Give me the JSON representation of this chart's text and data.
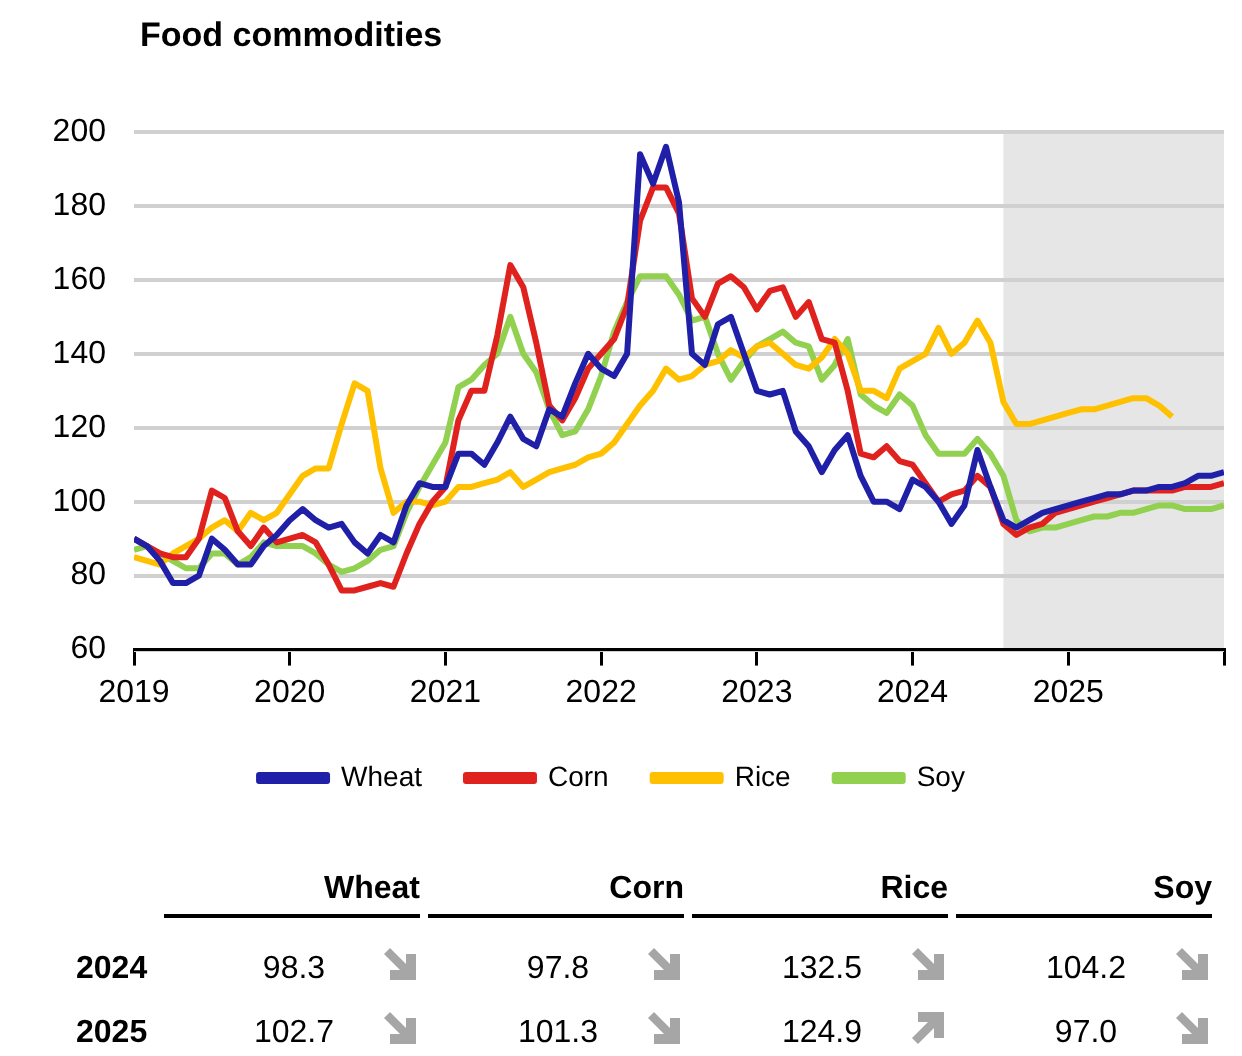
{
  "chart_data": {
    "type": "line",
    "title": "Food commodities",
    "x": [
      "2019-01",
      "2019-02",
      "2019-03",
      "2019-04",
      "2019-05",
      "2019-06",
      "2019-07",
      "2019-08",
      "2019-09",
      "2019-10",
      "2019-11",
      "2019-12",
      "2020-01",
      "2020-02",
      "2020-03",
      "2020-04",
      "2020-05",
      "2020-06",
      "2020-07",
      "2020-08",
      "2020-09",
      "2020-10",
      "2020-11",
      "2020-12",
      "2021-01",
      "2021-02",
      "2021-03",
      "2021-04",
      "2021-05",
      "2021-06",
      "2021-07",
      "2021-08",
      "2021-09",
      "2021-10",
      "2021-11",
      "2021-12",
      "2022-01",
      "2022-02",
      "2022-03",
      "2022-04",
      "2022-05",
      "2022-06",
      "2022-07",
      "2022-08",
      "2022-09",
      "2022-10",
      "2022-11",
      "2022-12",
      "2023-01",
      "2023-02",
      "2023-03",
      "2023-04",
      "2023-05",
      "2023-06",
      "2023-07",
      "2023-08",
      "2023-09",
      "2023-10",
      "2023-11",
      "2023-12",
      "2024-01",
      "2024-02",
      "2024-03",
      "2024-04",
      "2024-05",
      "2024-06",
      "2024-07",
      "2024-08",
      "2024-09",
      "2024-10",
      "2024-11",
      "2024-12",
      "2025-01",
      "2025-02",
      "2025-03",
      "2025-04",
      "2025-05",
      "2025-06",
      "2025-07",
      "2025-08",
      "2025-09",
      "2025-10",
      "2025-11",
      "2025-12",
      "2026-01"
    ],
    "series": [
      {
        "name": "Wheat",
        "color": "#1f1fa8",
        "values": [
          90,
          88,
          84,
          78,
          78,
          80,
          90,
          87,
          83,
          83,
          88,
          91,
          95,
          98,
          95,
          93,
          94,
          89,
          86,
          91,
          89,
          99,
          105,
          104,
          104,
          113,
          113,
          110,
          116,
          123,
          117,
          115,
          125,
          123,
          132,
          140,
          136,
          134,
          140,
          194,
          186,
          196,
          181,
          140,
          137,
          148,
          150,
          140,
          130,
          129,
          130,
          119,
          115,
          108,
          114,
          118,
          107,
          100,
          100,
          98,
          106,
          104,
          100,
          94,
          99,
          114,
          104,
          95,
          93,
          95,
          97,
          98,
          99,
          100,
          101,
          102,
          102,
          103,
          103,
          104,
          104,
          105,
          107,
          107,
          108
        ]
      },
      {
        "name": "Corn",
        "color": "#e0221f",
        "values": [
          90,
          88,
          86,
          85,
          85,
          90,
          103,
          101,
          92,
          88,
          93,
          89,
          90,
          91,
          89,
          83,
          76,
          76,
          77,
          78,
          77,
          86,
          94,
          100,
          104,
          122,
          130,
          130,
          145,
          164,
          158,
          143,
          126,
          122,
          128,
          136,
          140,
          144,
          153,
          176,
          185,
          185,
          178,
          155,
          150,
          159,
          161,
          158,
          152,
          157,
          158,
          150,
          154,
          144,
          143,
          130,
          113,
          112,
          115,
          111,
          110,
          105,
          100,
          102,
          103,
          107,
          104,
          94,
          91,
          93,
          94,
          97,
          98,
          99,
          100,
          101,
          102,
          103,
          103,
          103,
          103,
          104,
          104,
          104,
          105
        ]
      },
      {
        "name": "Rice",
        "color": "#ffc000",
        "values": [
          85,
          84,
          83,
          86,
          88,
          90,
          93,
          95,
          92,
          97,
          95,
          97,
          102,
          107,
          109,
          109,
          121,
          132,
          130,
          109,
          97,
          100,
          100,
          99,
          100,
          104,
          104,
          105,
          106,
          108,
          104,
          106,
          108,
          109,
          110,
          112,
          113,
          116,
          121,
          126,
          130,
          136,
          133,
          134,
          137,
          138,
          141,
          139,
          142,
          143,
          140,
          137,
          136,
          139,
          144,
          140,
          130,
          130,
          128,
          136,
          138,
          140,
          147,
          140,
          143,
          149,
          143,
          127,
          121,
          121,
          122,
          123,
          124,
          125,
          125,
          126,
          127,
          128,
          128,
          126,
          123,
          null,
          null,
          null,
          null
        ]
      },
      {
        "name": "Soy",
        "color": "#92d050",
        "values": [
          87,
          88,
          86,
          84,
          82,
          82,
          86,
          86,
          83,
          85,
          89,
          88,
          88,
          88,
          86,
          83,
          81,
          82,
          84,
          87,
          88,
          97,
          104,
          110,
          116,
          131,
          133,
          137,
          140,
          150,
          140,
          135,
          125,
          118,
          119,
          125,
          134,
          146,
          154,
          161,
          161,
          161,
          156,
          149,
          150,
          140,
          133,
          138,
          142,
          144,
          146,
          143,
          142,
          133,
          137,
          144,
          129,
          126,
          124,
          129,
          126,
          118,
          113,
          113,
          113,
          117,
          113,
          107,
          95,
          92,
          93,
          93,
          94,
          95,
          96,
          96,
          97,
          97,
          98,
          99,
          99,
          98,
          98,
          98,
          99
        ]
      }
    ],
    "xlim": [
      "2019-01",
      "2026-01"
    ],
    "xticks": [
      "2019",
      "2020",
      "2021",
      "2022",
      "2023",
      "2024",
      "2025",
      {
        "value": "2026",
        "label": null
      }
    ],
    "ylim": [
      60,
      200
    ],
    "yticks": [
      60,
      80,
      100,
      120,
      140,
      160,
      180,
      200
    ],
    "grid": "y",
    "legend": "bottom",
    "bands": [
      {
        "axis": "x",
        "from": "2024-08",
        "to": "2026-01",
        "color": "#e6e6e6"
      }
    ],
    "annotations": [
      "2024",
      "98.3",
      "97.8",
      "132.5",
      "104.2",
      "2025",
      "102.7",
      "101.3",
      "124.9",
      "97.0"
    ]
  }
}
